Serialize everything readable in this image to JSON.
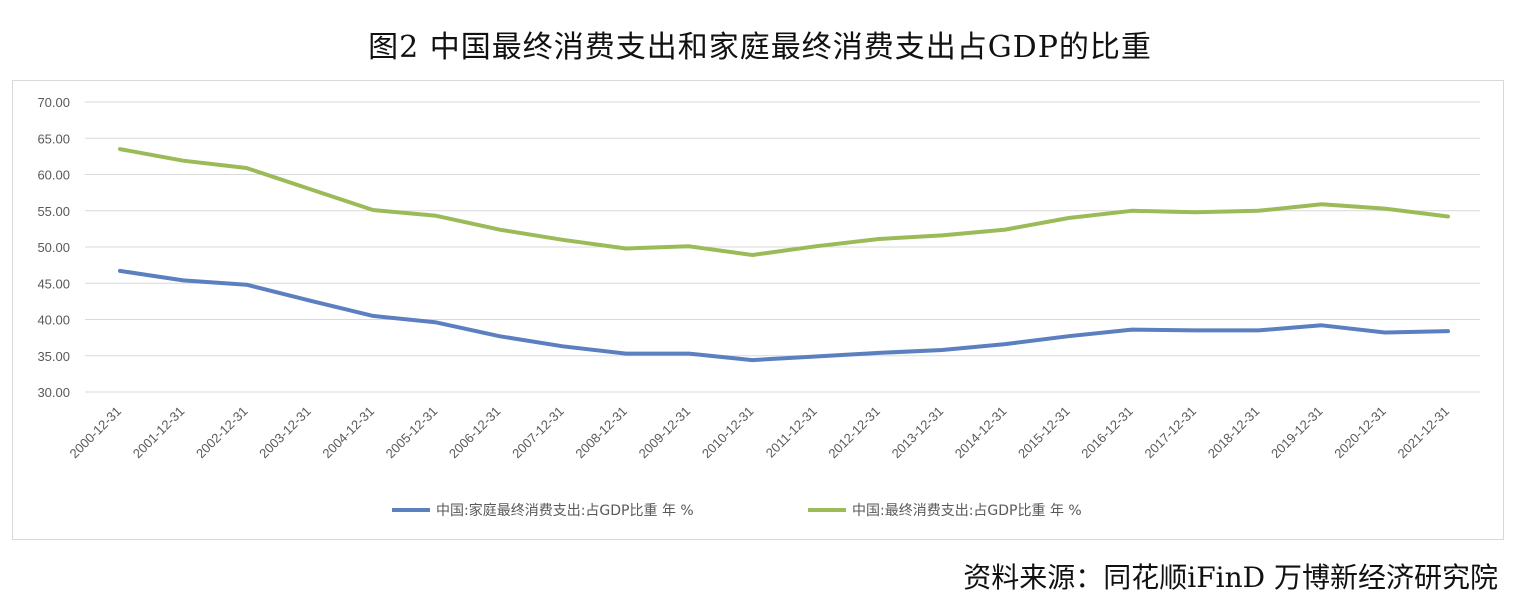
{
  "title": "图2  中国最终消费支出和家庭最终消费支出占GDP的比重",
  "source": "资料来源：同花顺iFinD 万博新经济研究院",
  "chart_data": {
    "type": "line",
    "title": "图2  中国最终消费支出和家庭最终消费支出占GDP的比重",
    "xlabel": "",
    "ylabel": "",
    "ylim": [
      30,
      70
    ],
    "yticks": [
      "30.00",
      "35.00",
      "40.00",
      "45.00",
      "50.00",
      "55.00",
      "60.00",
      "65.00",
      "70.00"
    ],
    "grid": true,
    "legend": "bottom",
    "categories": [
      "2000-12-31",
      "2001-12-31",
      "2002-12-31",
      "2003-12-31",
      "2004-12-31",
      "2005-12-31",
      "2006-12-31",
      "2007-12-31",
      "2008-12-31",
      "2009-12-31",
      "2010-12-31",
      "2011-12-31",
      "2012-12-31",
      "2013-12-31",
      "2014-12-31",
      "2015-12-31",
      "2016-12-31",
      "2017-12-31",
      "2018-12-31",
      "2019-12-31",
      "2020-12-31",
      "2021-12-31"
    ],
    "series": [
      {
        "name": "中国:家庭最终消费支出:占GDP比重 年 %",
        "color": "#5b7fbf",
        "values": [
          46.7,
          45.4,
          44.8,
          42.6,
          40.5,
          39.6,
          37.7,
          36.3,
          35.3,
          35.3,
          34.4,
          34.9,
          35.4,
          35.8,
          36.6,
          37.7,
          38.6,
          38.5,
          38.5,
          39.2,
          38.2,
          38.4
        ]
      },
      {
        "name": "中国:最终消费支出:占GDP比重 年 %",
        "color": "#9bbb59",
        "values": [
          63.5,
          61.9,
          60.9,
          58.0,
          55.1,
          54.3,
          52.4,
          51.0,
          49.8,
          50.1,
          48.9,
          50.1,
          51.1,
          51.6,
          52.4,
          54.0,
          55.0,
          54.8,
          55.0,
          55.9,
          55.3,
          54.2
        ]
      }
    ]
  }
}
